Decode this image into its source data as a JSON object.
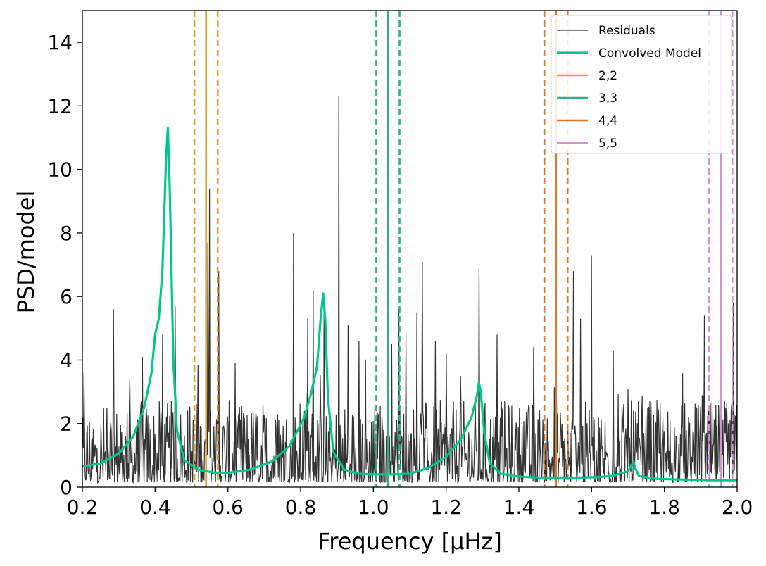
{
  "chart_data": {
    "type": "line",
    "title": "",
    "xlabel": "Frequency [μHz]",
    "ylabel": "PSD/model",
    "xlim": [
      0.2,
      2.0
    ],
    "ylim": [
      0,
      15
    ],
    "x_ticks": [
      "0.2",
      "0.4",
      "0.6",
      "0.8",
      "1.0",
      "1.2",
      "1.4",
      "1.6",
      "1.8",
      "2.0"
    ],
    "y_ticks": [
      "0",
      "2",
      "4",
      "6",
      "8",
      "10",
      "12",
      "14"
    ],
    "legend_position": "top-right",
    "grid": false,
    "colors": {
      "residuals": "#333333",
      "model": "#00c78c",
      "2,2": "#e0a030",
      "3,3": "#2fb08a",
      "4,4": "#d9782a",
      "5,5": "#d98fd0"
    },
    "series": [
      {
        "name": "Residuals",
        "style": "thin black line",
        "peaks": [
          [
            0.205,
            3.6
          ],
          [
            0.285,
            5.6
          ],
          [
            0.33,
            3.4
          ],
          [
            0.365,
            4.1
          ],
          [
            0.42,
            4.8
          ],
          [
            0.455,
            5.7
          ],
          [
            0.545,
            7.7
          ],
          [
            0.55,
            9.4
          ],
          [
            0.575,
            6.8
          ],
          [
            0.62,
            3.9
          ],
          [
            0.78,
            8.0
          ],
          [
            0.82,
            5.3
          ],
          [
            0.835,
            6.2
          ],
          [
            0.865,
            5.9
          ],
          [
            0.905,
            12.3
          ],
          [
            0.93,
            5.1
          ],
          [
            0.96,
            4.6
          ],
          [
            1.05,
            4.5
          ],
          [
            1.07,
            5.6
          ],
          [
            1.09,
            4.9
          ],
          [
            1.12,
            5.5
          ],
          [
            1.135,
            7.1
          ],
          [
            1.17,
            4.6
          ],
          [
            1.2,
            4.2
          ],
          [
            1.24,
            3.5
          ],
          [
            1.29,
            6.9
          ],
          [
            1.34,
            4.8
          ],
          [
            1.44,
            4.4
          ],
          [
            1.55,
            6.8
          ],
          [
            1.57,
            5.3
          ],
          [
            1.6,
            7.3
          ],
          [
            1.66,
            4.3
          ],
          [
            1.7,
            3.1
          ],
          [
            1.76,
            2.7
          ],
          [
            1.91,
            5.4
          ],
          [
            1.99,
            5.8
          ]
        ]
      },
      {
        "name": "Convolved Model",
        "style": "thick green line",
        "points": [
          [
            0.2,
            0.65
          ],
          [
            0.25,
            0.75
          ],
          [
            0.3,
            1.05
          ],
          [
            0.34,
            1.6
          ],
          [
            0.37,
            2.5
          ],
          [
            0.39,
            3.6
          ],
          [
            0.4,
            4.8
          ],
          [
            0.41,
            5.3
          ],
          [
            0.42,
            6.8
          ],
          [
            0.43,
            10.3
          ],
          [
            0.435,
            11.3
          ],
          [
            0.44,
            9.5
          ],
          [
            0.45,
            4.0
          ],
          [
            0.46,
            1.8
          ],
          [
            0.48,
            0.85
          ],
          [
            0.52,
            0.55
          ],
          [
            0.56,
            0.46
          ],
          [
            0.6,
            0.45
          ],
          [
            0.66,
            0.55
          ],
          [
            0.72,
            0.8
          ],
          [
            0.77,
            1.3
          ],
          [
            0.81,
            2.2
          ],
          [
            0.83,
            3.0
          ],
          [
            0.845,
            3.8
          ],
          [
            0.855,
            5.3
          ],
          [
            0.862,
            6.1
          ],
          [
            0.868,
            5.2
          ],
          [
            0.875,
            2.8
          ],
          [
            0.89,
            1.1
          ],
          [
            0.92,
            0.55
          ],
          [
            0.96,
            0.42
          ],
          [
            1.0,
            0.4
          ],
          [
            1.04,
            0.4
          ],
          [
            1.1,
            0.42
          ],
          [
            1.15,
            0.6
          ],
          [
            1.2,
            0.95
          ],
          [
            1.24,
            1.5
          ],
          [
            1.27,
            2.2
          ],
          [
            1.285,
            2.9
          ],
          [
            1.29,
            3.3
          ],
          [
            1.295,
            3.0
          ],
          [
            1.305,
            1.7
          ],
          [
            1.32,
            0.75
          ],
          [
            1.35,
            0.42
          ],
          [
            1.4,
            0.33
          ],
          [
            1.46,
            0.3
          ],
          [
            1.5,
            0.3
          ],
          [
            1.56,
            0.3
          ],
          [
            1.62,
            0.32
          ],
          [
            1.66,
            0.36
          ],
          [
            1.7,
            0.5
          ],
          [
            1.715,
            0.8
          ],
          [
            1.72,
            0.6
          ],
          [
            1.73,
            0.35
          ],
          [
            1.78,
            0.26
          ],
          [
            1.85,
            0.24
          ],
          [
            1.92,
            0.22
          ],
          [
            2.0,
            0.22
          ]
        ]
      }
    ],
    "vertical_lines": [
      {
        "name": "2,2",
        "center": 0.54,
        "lower": 0.508,
        "upper": 0.572
      },
      {
        "name": "3,3",
        "center": 1.04,
        "lower": 1.008,
        "upper": 1.072
      },
      {
        "name": "4,4",
        "center": 1.502,
        "lower": 1.47,
        "upper": 1.534
      },
      {
        "name": "5,5",
        "center": 1.955,
        "lower": 1.923,
        "upper": 1.987
      }
    ],
    "legend": [
      "Residuals",
      "Convolved Model",
      "2,2",
      "3,3",
      "4,4",
      "5,5"
    ]
  }
}
